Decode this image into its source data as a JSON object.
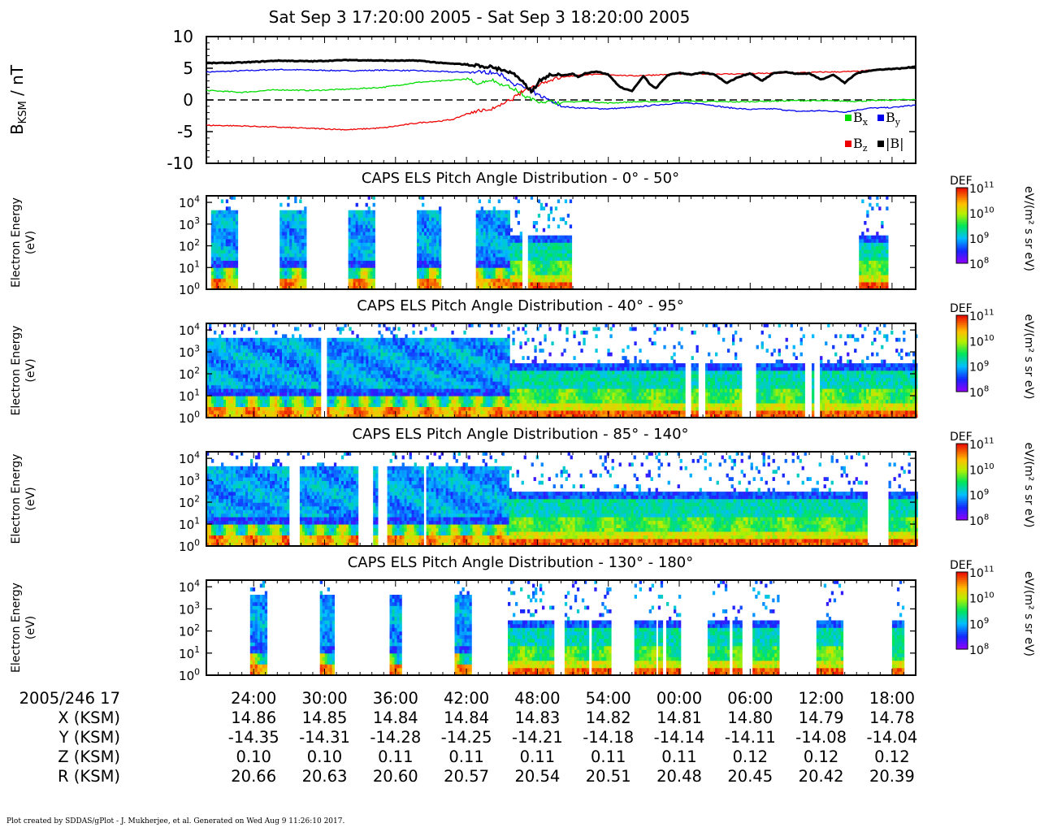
{
  "title": "Sat Sep 3 17:20:00 2005 - Sat Sep 3 18:20:00 2005",
  "footer": "Plot created by SDDAS/gPlot - J. Mukherjee, et al.  Generated on Wed Aug 9 11:26:10 2017.",
  "colors": {
    "bx": "#00dd00",
    "by": "#0000ee",
    "bz": "#ee0000",
    "btot": "#000000",
    "zero_line": "#000000"
  },
  "chart_data": [
    {
      "type": "line",
      "ylabel_main": "B",
      "ylabel_sub": "KSM",
      "ylabel_unit": " / nT",
      "ylim": [
        -10,
        10
      ],
      "yticks": [
        "10",
        "5",
        "0",
        "-5",
        "-10"
      ],
      "x_unit": "minutes since 17:20",
      "legend": {
        "placement": "bottom-right",
        "entries": [
          {
            "key": "bx",
            "main": "B",
            "sub": "x"
          },
          {
            "key": "by",
            "main": "B",
            "sub": "y"
          },
          {
            "key": "bz",
            "main": "B",
            "sub": "z"
          },
          {
            "key": "btot",
            "main": "|B|",
            "sub": ""
          }
        ]
      },
      "series": [
        {
          "key": "btot",
          "x": [
            0,
            3,
            6,
            9,
            12,
            15,
            18,
            20,
            22,
            24,
            25,
            26,
            27,
            27.5,
            28,
            28.5,
            29,
            30,
            31,
            31.5,
            32,
            33,
            34,
            35,
            36,
            37,
            37.5,
            38,
            39,
            40,
            41,
            42,
            43,
            44,
            45,
            46,
            47,
            48,
            49,
            50,
            51,
            52,
            53,
            54,
            55,
            56,
            57,
            58,
            59,
            60
          ],
          "y": [
            5.8,
            5.9,
            6.2,
            6.1,
            6.3,
            6.2,
            6.2,
            5.8,
            5.6,
            5.2,
            4.8,
            4.1,
            2.3,
            1.4,
            2.6,
            3.5,
            3.9,
            3.9,
            4.1,
            3.6,
            4.2,
            4.5,
            4.0,
            2.0,
            1.4,
            3.8,
            2.5,
            1.8,
            3.9,
            4.3,
            4.0,
            4.3,
            4.0,
            2.7,
            3.6,
            4.2,
            3.0,
            4.3,
            4.4,
            4.1,
            4.2,
            3.2,
            4.0,
            2.7,
            4.2,
            4.6,
            4.8,
            4.9,
            5.0,
            5.3
          ]
        },
        {
          "key": "by",
          "x": [
            0,
            3,
            6,
            9,
            12,
            15,
            18,
            21,
            23,
            24,
            25,
            26,
            27,
            27.5,
            28,
            29,
            30,
            31,
            32,
            34,
            36,
            38,
            40,
            42,
            44,
            46,
            48,
            50,
            52,
            54,
            56,
            58,
            60
          ],
          "y": [
            4.4,
            4.6,
            4.8,
            4.7,
            4.6,
            4.7,
            4.6,
            4.4,
            4.4,
            4.4,
            3.9,
            2.6,
            1.9,
            1.4,
            0.8,
            0.0,
            -1.0,
            -1.2,
            -1.3,
            -1.4,
            -1.2,
            -0.8,
            -0.5,
            -0.6,
            -1.2,
            -1.5,
            -1.4,
            -1.8,
            -1.7,
            -1.9,
            -1.3,
            -1.2,
            -0.8
          ]
        },
        {
          "key": "bx",
          "x": [
            0,
            3,
            6,
            9,
            12,
            15,
            18,
            20,
            22,
            23,
            24,
            25,
            26,
            27,
            28,
            30,
            32,
            34,
            36,
            40,
            45,
            50,
            55,
            60
          ],
          "y": [
            1.5,
            1.2,
            1.6,
            1.5,
            1.7,
            2.0,
            2.8,
            3.0,
            3.3,
            2.6,
            3.2,
            2.5,
            1.8,
            0.5,
            -0.2,
            -0.4,
            -0.2,
            -0.5,
            -0.3,
            -0.2,
            -0.3,
            -0.1,
            -0.2,
            0.1
          ]
        },
        {
          "key": "bz",
          "x": [
            0,
            3,
            6,
            9,
            12,
            15,
            18,
            20,
            21,
            22,
            23,
            24,
            25,
            26,
            27,
            28,
            29,
            30,
            31,
            32,
            34,
            36,
            40,
            45,
            50,
            55,
            60
          ],
          "y": [
            -4.0,
            -4.1,
            -4.3,
            -4.5,
            -4.7,
            -4.4,
            -3.6,
            -3.3,
            -3.0,
            -2.2,
            -1.7,
            -1.5,
            -0.8,
            0.3,
            1.6,
            2.4,
            3.1,
            3.6,
            3.8,
            4.0,
            4.0,
            3.8,
            4.1,
            4.1,
            4.3,
            4.5,
            5.2
          ]
        }
      ],
      "zero_line": 0
    },
    {
      "type": "heatmap",
      "title": "CAPS ELS Pitch Angle Distribution - 0° - 50°",
      "ylabel": "Electron Energy",
      "yunit": "(eV)",
      "energy_range_eV": [
        1,
        20000
      ],
      "cbar_label": "DEF",
      "cbar_unit": "eV/(m² s sr eV)",
      "cbar_range": [
        100000000.0,
        100000000000.0
      ],
      "coverage_minutes": [
        [
          0.4,
          2.6
        ],
        [
          6.2,
          8.4
        ],
        [
          12.0,
          14.2
        ],
        [
          17.8,
          19.7
        ],
        [
          22.8,
          26.7
        ],
        [
          27.2,
          30.8
        ],
        [
          55.2,
          57.5
        ]
      ]
    },
    {
      "type": "heatmap",
      "title": "CAPS ELS Pitch Angle Distribution - 40° - 95°",
      "ylabel": "Electron Energy",
      "yunit": "(eV)",
      "energy_range_eV": [
        1,
        20000
      ],
      "cbar_label": "DEF",
      "cbar_unit": "eV/(m² s sr eV)",
      "cbar_range": [
        100000000.0,
        100000000000.0
      ],
      "coverage_minutes": [
        [
          0,
          9.6
        ],
        [
          10.2,
          40.5
        ],
        [
          41.0,
          41.6
        ],
        [
          42.2,
          45.2
        ],
        [
          46.5,
          50.5
        ],
        [
          51.2,
          51.4
        ],
        [
          51.9,
          60
        ]
      ]
    },
    {
      "type": "heatmap",
      "title": "CAPS ELS Pitch Angle Distribution - 85° - 140°",
      "ylabel": "Electron Energy",
      "yunit": "(eV)",
      "energy_range_eV": [
        1,
        20000
      ],
      "cbar_label": "DEF",
      "cbar_unit": "eV/(m² s sr eV)",
      "cbar_range": [
        100000000.0,
        100000000000.0
      ],
      "coverage_minutes": [
        [
          0,
          6.9
        ],
        [
          7.9,
          12.7
        ],
        [
          14.1,
          14.5
        ],
        [
          15.3,
          18.2
        ],
        [
          18.6,
          55.8
        ],
        [
          57.7,
          60
        ]
      ]
    },
    {
      "type": "heatmap",
      "title": "CAPS ELS Pitch Angle Distribution - 130° - 180°",
      "ylabel": "Electron Energy",
      "yunit": "(eV)",
      "energy_range_eV": [
        1,
        20000
      ],
      "cbar_label": "DEF",
      "cbar_unit": "eV/(m² s sr eV)",
      "cbar_range": [
        100000000.0,
        100000000000.0
      ],
      "coverage_minutes": [
        [
          3.7,
          5.0
        ],
        [
          9.6,
          10.8
        ],
        [
          15.5,
          16.4
        ],
        [
          21.0,
          22.4
        ],
        [
          25.5,
          29.3
        ],
        [
          30.3,
          32.2
        ],
        [
          32.6,
          34.2
        ],
        [
          36.2,
          38.0
        ],
        [
          38.2,
          38.5
        ],
        [
          38.9,
          40.1
        ],
        [
          42.4,
          44.2
        ],
        [
          44.5,
          45.2
        ],
        [
          46.2,
          48.4
        ],
        [
          51.6,
          53.8
        ],
        [
          58.0,
          59.0
        ]
      ]
    }
  ],
  "energy_ticks": [
    {
      "mant": "10",
      "exp": "4"
    },
    {
      "mant": "10",
      "exp": "3"
    },
    {
      "mant": "10",
      "exp": "2"
    },
    {
      "mant": "10",
      "exp": "1"
    },
    {
      "mant": "10",
      "exp": "0"
    }
  ],
  "cbar_ticks": [
    {
      "mant": "10",
      "exp": "11"
    },
    {
      "mant": "10",
      "exp": "10"
    },
    {
      "mant": "10",
      "exp": "9"
    },
    {
      "mant": "10",
      "exp": "8"
    }
  ],
  "time_axis": {
    "start_label": "2005/246 17",
    "labels": [
      "24:00",
      "30:00",
      "36:00",
      "42:00",
      "48:00",
      "54:00",
      "00:00",
      "06:00",
      "12:00",
      "18:00"
    ],
    "label_minutes": [
      4,
      10,
      16,
      22,
      28,
      34,
      40,
      46,
      52,
      58
    ],
    "minor_step_minutes": 1
  },
  "ephemeris": [
    {
      "label": "X (KSM)",
      "values": [
        "14.86",
        "14.85",
        "14.84",
        "14.84",
        "14.83",
        "14.82",
        "14.81",
        "14.80",
        "14.79",
        "14.78"
      ]
    },
    {
      "label": "Y (KSM)",
      "values": [
        "-14.35",
        "-14.31",
        "-14.28",
        "-14.25",
        "-14.21",
        "-14.18",
        "-14.14",
        "-14.11",
        "-14.08",
        "-14.04"
      ]
    },
    {
      "label": "Z (KSM)",
      "values": [
        "0.10",
        "0.10",
        "0.11",
        "0.11",
        "0.11",
        "0.11",
        "0.11",
        "0.12",
        "0.12",
        "0.12"
      ]
    },
    {
      "label": "R (KSM)",
      "values": [
        "20.66",
        "20.63",
        "20.60",
        "20.57",
        "20.54",
        "20.51",
        "20.48",
        "20.45",
        "20.42",
        "20.39"
      ]
    }
  ]
}
